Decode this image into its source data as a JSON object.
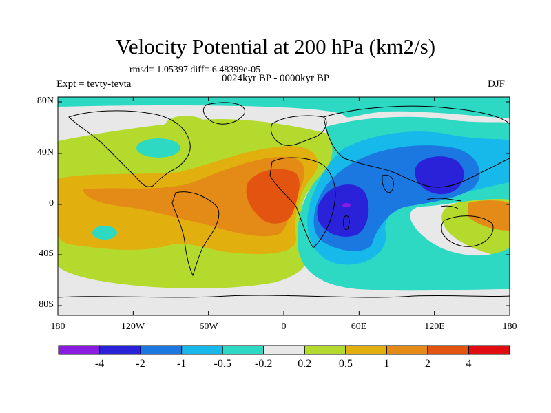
{
  "title": "Velocity Potential at 200 hPa (km2/s)",
  "stats": "rmsd= 1.05397 diff= 6.48399e-05",
  "expt_label": "Expt = tevty-tevta",
  "period_label": "0024kyr BP - 0000kyr BP",
  "season_label": "DJF",
  "lat_ticks": [
    "80N",
    "40N",
    "0",
    "40S",
    "80S"
  ],
  "lon_ticks": [
    "180",
    "120W",
    "60W",
    "0",
    "60E",
    "120E",
    "180"
  ],
  "colorbar": {
    "colors": [
      "#8a1be0",
      "#2a22d8",
      "#1a78e0",
      "#17b8ea",
      "#2ed9c4",
      "#e8e8e8",
      "#b3da2c",
      "#e2b00e",
      "#e38a17",
      "#e2540f",
      "#e10c10"
    ],
    "labels": [
      "-4",
      "-2",
      "-1",
      "-0.5",
      "-0.2",
      "0.2",
      "0.5",
      "1",
      "2",
      "4"
    ]
  },
  "field_colors": {
    "neutral": "#e8e8e8",
    "pos1": "#b3da2c",
    "pos2": "#e2b00e",
    "pos3": "#e38a17",
    "pos4": "#e2540f",
    "neg1": "#2ed9c4",
    "neg2": "#17b8ea",
    "neg3": "#1a78e0",
    "neg4": "#2a22d8",
    "neg5": "#8a1be0"
  }
}
